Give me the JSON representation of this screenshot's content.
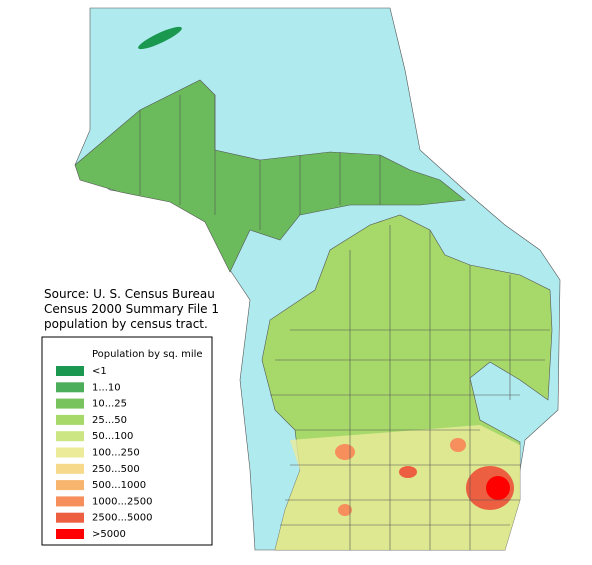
{
  "source": [
    "Source: U. S. Census Bureau",
    "Census 2000 Summary File 1",
    "population by census tract."
  ],
  "legend": {
    "title": "Population by sq. mile",
    "items": [
      {
        "label": "<1",
        "color": "#1a9850"
      },
      {
        "label": "1...10",
        "color": "#4cad5b"
      },
      {
        "label": "10...25",
        "color": "#79c35f"
      },
      {
        "label": "25...50",
        "color": "#a6d96a"
      },
      {
        "label": "50...100",
        "color": "#cbe683"
      },
      {
        "label": "100...250",
        "color": "#ebeb9a"
      },
      {
        "label": "250...500",
        "color": "#f6d98a"
      },
      {
        "label": "500...1000",
        "color": "#f8b56d"
      },
      {
        "label": "1000...2500",
        "color": "#f68f5b"
      },
      {
        "label": "2500...5000",
        "color": "#ec5f41"
      },
      {
        "label": ">5000",
        "color": "#ff0000"
      }
    ]
  }
}
